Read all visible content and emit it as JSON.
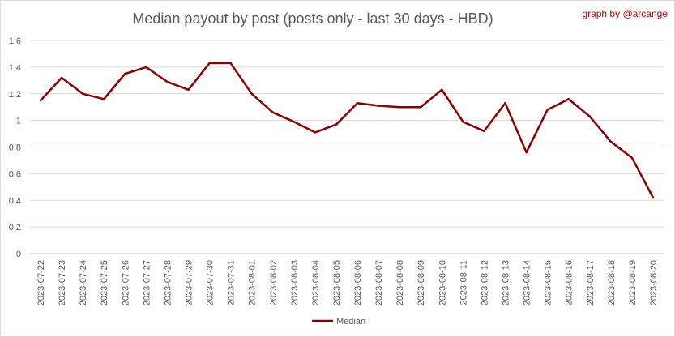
{
  "chart_data": {
    "type": "line",
    "title": "Median payout by post (posts only - last 30 days - HBD)",
    "credit": "graph by @arcange",
    "xlabel": "",
    "ylabel": "",
    "ylim": [
      0,
      1.6
    ],
    "yticks": [
      "0",
      "0,2",
      "0,4",
      "0,6",
      "0,8",
      "1",
      "1,2",
      "1,4",
      "1,6"
    ],
    "grid": true,
    "legend_position": "bottom",
    "colors": {
      "line": "#8b0000",
      "grid": "#d9d9d9",
      "axis": "#bfbfbf",
      "text": "#595959"
    },
    "categories": [
      "2023-07-22",
      "2023-07-23",
      "2023-07-24",
      "2023-07-25",
      "2023-07-26",
      "2023-07-27",
      "2023-07-28",
      "2023-07-29",
      "2023-07-30",
      "2023-07-31",
      "2023-08-01",
      "2023-08-02",
      "2023-08-03",
      "2023-08-04",
      "2023-08-05",
      "2023-08-06",
      "2023-08-07",
      "2023-08-08",
      "2023-08-09",
      "2023-08-10",
      "2023-08-11",
      "2023-08-12",
      "2023-08-13",
      "2023-08-14",
      "2023-08-15",
      "2023-08-16",
      "2023-08-17",
      "2023-08-18",
      "2023-08-19",
      "2023-08-20"
    ],
    "series": [
      {
        "name": "Median",
        "values": [
          1.15,
          1.32,
          1.2,
          1.16,
          1.35,
          1.4,
          1.29,
          1.23,
          1.43,
          1.43,
          1.2,
          1.06,
          0.99,
          0.91,
          0.97,
          1.13,
          1.11,
          1.1,
          1.1,
          1.23,
          0.99,
          0.92,
          1.13,
          0.76,
          1.08,
          1.16,
          1.03,
          0.84,
          0.72,
          0.42
        ]
      }
    ]
  }
}
